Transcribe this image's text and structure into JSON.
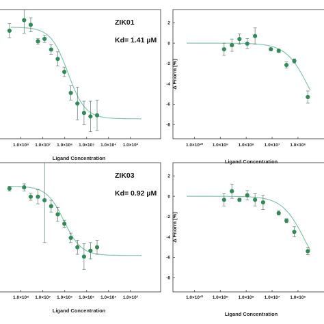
{
  "chart_data": [
    {
      "type": "scatter",
      "panel": "top-left",
      "annotation": [
        "ZIK01",
        "Kd= 1.41 µM"
      ],
      "xlabel": "Ligand Concentration",
      "ylabel": "",
      "x_scale": "log",
      "xtick_labels": [
        "1.0×10⁸",
        "1.0×10⁷",
        "1.0×10⁶",
        "1.0×10⁵",
        "1.0×10⁴",
        "1.0×10³"
      ],
      "xtick_values": [
        1e-08,
        1e-07,
        1e-06,
        1e-05,
        0.0001,
        0.001
      ],
      "xlim": [
        3.5e-09,
        0.0032
      ],
      "ylim": [
        -4.4,
        1.1
      ],
      "yticks": [],
      "grid": false,
      "marker_color": "#2e8b57",
      "fit_color": "#7fc8a9",
      "points": [
        {
          "x": 3e-09,
          "y": 0.2,
          "err": 0.3
        },
        {
          "x": 1.4e-08,
          "y": 0.65,
          "err": 0.55
        },
        {
          "x": 2.8e-08,
          "y": 0.45,
          "err": 0.3
        },
        {
          "x": 6e-08,
          "y": -0.25,
          "err": 0.12
        },
        {
          "x": 1.2e-07,
          "y": -0.15,
          "err": 0.15
        },
        {
          "x": 2.4e-07,
          "y": -0.6,
          "err": 0.2
        },
        {
          "x": 4.8e-07,
          "y": -1.0,
          "err": 0.3
        },
        {
          "x": 9.6e-07,
          "y": -1.55,
          "err": 0.2
        },
        {
          "x": 1.9e-06,
          "y": -2.45,
          "err": 0.3
        },
        {
          "x": 3.8e-06,
          "y": -2.9,
          "err": 0.7
        },
        {
          "x": 7.6e-06,
          "y": -3.3,
          "err": 0.5
        },
        {
          "x": 1.5e-05,
          "y": -3.45,
          "err": 0.65
        },
        {
          "x": 3e-05,
          "y": -3.4,
          "err": 0.65
        }
      ],
      "fit": {
        "top": 0.35,
        "bottom": -3.55,
        "ec50": 1.41e-06,
        "hill": 1.1
      }
    },
    {
      "type": "scatter",
      "panel": "top-right",
      "xlabel": "Ligand Concentration",
      "ylabel": "Δ Fnorm [%]",
      "x_scale": "log",
      "xtick_labels": [
        "1.0×10¹⁰",
        "1.0×10⁹",
        "1.0×10⁸",
        "1.0×10⁷",
        "1.0×10⁶"
      ],
      "xtick_values": [
        1e-10,
        1e-09,
        1e-08,
        1e-07,
        1e-06
      ],
      "xlim": [
        5e-11,
        3e-06
      ],
      "ylim": [
        -9.4,
        3.3
      ],
      "yticks": [
        2,
        0,
        -2,
        -4,
        -6,
        -8
      ],
      "grid": false,
      "marker_color": "#2e8b57",
      "fit_color": "#7fc8a9",
      "points": [
        {
          "x": 1.4e-09,
          "y": -0.6,
          "err": 0.6
        },
        {
          "x": 2.8e-09,
          "y": -0.2,
          "err": 0.6
        },
        {
          "x": 5.5e-09,
          "y": 0.4,
          "err": 0.5
        },
        {
          "x": 1.1e-08,
          "y": -0.05,
          "err": 0.5
        },
        {
          "x": 2.2e-08,
          "y": 0.7,
          "err": 0.8
        },
        {
          "x": 9e-08,
          "y": -0.6,
          "err": 0.12
        },
        {
          "x": 1.8e-07,
          "y": -0.75,
          "err": 0.15
        },
        {
          "x": 3.6e-07,
          "y": -2.15,
          "err": 0.3
        },
        {
          "x": 7.2e-07,
          "y": -1.75,
          "err": 0.2
        },
        {
          "x": 2.4e-06,
          "y": -5.3,
          "err": 0.6
        }
      ],
      "fit": {
        "top": 0.0,
        "bottom": -8.5,
        "ec50": 2.5e-06,
        "hill": 1.0
      }
    },
    {
      "type": "scatter",
      "panel": "bottom-left",
      "annotation": [
        "ZIK03",
        "Kd= 0.92 µM"
      ],
      "xlabel": "Ligand Concentration",
      "ylabel": "",
      "x_scale": "log",
      "xtick_labels": [
        "1.0×10⁸",
        "1.0×10⁷",
        "1.0×10⁶",
        "1.0×10⁵",
        "1.0×10⁴",
        "1.0×10³"
      ],
      "xtick_values": [
        1e-08,
        1e-07,
        1e-06,
        1e-05,
        0.0001,
        0.001
      ],
      "xlim": [
        3.5e-09,
        0.0032
      ],
      "ylim": [
        -4.4,
        1.1
      ],
      "yticks": [],
      "grid": false,
      "marker_color": "#2e8b57",
      "fit_color": "#7fc8a9",
      "points": [
        {
          "x": 3e-09,
          "y": 0.0,
          "err": 0.1
        },
        {
          "x": 1.4e-08,
          "y": 0.05,
          "err": 0.15
        },
        {
          "x": 2.8e-08,
          "y": -0.35,
          "err": 0.15
        },
        {
          "x": 6e-08,
          "y": -0.35,
          "err": 0.3
        },
        {
          "x": 1.2e-07,
          "y": -0.5,
          "err": 1.8
        },
        {
          "x": 2.4e-07,
          "y": -0.75,
          "err": 0.25
        },
        {
          "x": 4.8e-07,
          "y": -1.1,
          "err": 0.3
        },
        {
          "x": 9.6e-07,
          "y": -1.5,
          "err": 0.15
        },
        {
          "x": 1.9e-06,
          "y": -2.1,
          "err": 0.2
        },
        {
          "x": 3.8e-06,
          "y": -2.5,
          "err": 0.3
        },
        {
          "x": 7.6e-06,
          "y": -2.9,
          "err": 0.55
        },
        {
          "x": 1.5e-05,
          "y": -2.65,
          "err": 0.35
        },
        {
          "x": 3e-05,
          "y": -2.5,
          "err": 0.3
        }
      ],
      "fit": {
        "top": 0.1,
        "bottom": -2.85,
        "ec50": 9.2e-07,
        "hill": 1.1
      }
    },
    {
      "type": "scatter",
      "panel": "bottom-right",
      "xlabel": "Ligand Concentration",
      "ylabel": "Δ Fnorm [%]",
      "x_scale": "log",
      "xtick_labels": [
        "1.0×10¹⁰",
        "1.0×10⁹",
        "1.0×10⁸",
        "1.0×10⁷",
        "1.0×10⁶"
      ],
      "xtick_values": [
        1e-10,
        1e-09,
        1e-08,
        1e-07,
        1e-06
      ],
      "xlim": [
        5e-11,
        3e-06
      ],
      "ylim": [
        -9.4,
        3.3
      ],
      "yticks": [
        2,
        0,
        -2,
        -4,
        -6,
        -8
      ],
      "grid": false,
      "marker_color": "#2e8b57",
      "fit_color": "#7fc8a9",
      "points": [
        {
          "x": 1.4e-09,
          "y": -0.35,
          "err": 0.6
        },
        {
          "x": 2.8e-09,
          "y": 0.5,
          "err": 0.7
        },
        {
          "x": 5.5e-09,
          "y": -0.35,
          "err": 0.15
        },
        {
          "x": 1.1e-08,
          "y": 0.1,
          "err": 0.45
        },
        {
          "x": 2.2e-08,
          "y": -0.35,
          "err": 0.6
        },
        {
          "x": 4.5e-08,
          "y": -0.6,
          "err": 0.7
        },
        {
          "x": 1.8e-07,
          "y": -1.65,
          "err": 0.2
        },
        {
          "x": 3.6e-07,
          "y": -2.4,
          "err": 0.2
        },
        {
          "x": 7.2e-07,
          "y": -3.5,
          "err": 0.5
        },
        {
          "x": 2.4e-06,
          "y": -5.4,
          "err": 0.35
        }
      ],
      "fit": {
        "top": 0.0,
        "bottom": -8.5,
        "ec50": 1.8e-06,
        "hill": 1.0
      }
    }
  ]
}
